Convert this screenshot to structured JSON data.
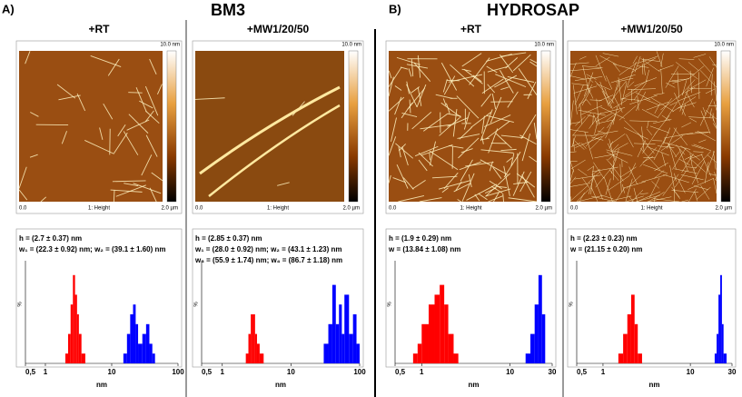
{
  "headers": {
    "a": "A)",
    "bm3": "BM3",
    "b": "B)",
    "hydrosap": "HYDROSAP"
  },
  "columns": [
    "+RT",
    "+MW1/20/50",
    "+RT",
    "+MW1/20/50"
  ],
  "afm": {
    "scale_max": "10.0 nm",
    "origin": "0.0",
    "channel": "1: Height",
    "size": "2.0 µm"
  },
  "chart_data": [
    {
      "type": "histogram",
      "annotations": [
        "h = (2.7 ± 0.37) nm",
        "w₁ = (22.3 ± 0.92) nm; w₂ = (39.1 ± 1.60) nm"
      ],
      "xlabel": "nm",
      "ylabel": "%",
      "xscale": "log",
      "xlim": [
        0.5,
        100
      ],
      "xticks": [
        {
          "value": 0.5,
          "label": "0,5"
        },
        1,
        10,
        100
      ],
      "ylim": [
        0,
        10
      ],
      "series": [
        {
          "color": "#ff0000",
          "bins": [
            2.0,
            2.2,
            2.4,
            2.6,
            2.8,
            3.0,
            3.2,
            3.5,
            4.0
          ],
          "values": [
            1,
            3,
            6,
            9,
            7,
            5,
            3,
            1
          ]
        },
        {
          "color": "#0000ff",
          "bins": [
            15,
            17,
            19,
            21,
            23,
            25,
            29,
            33,
            37,
            41,
            45
          ],
          "values": [
            1,
            3,
            5,
            6,
            4,
            2,
            3,
            4,
            2,
            1
          ]
        }
      ]
    },
    {
      "type": "histogram",
      "annotations": [
        "h = (2.85 ± 0.37) nm",
        "w₁ = (28.0 ± 0.92) nm; w₂ = (43.1 ± 1.23) nm",
        "w₃ = (55.9 ± 1.74) nm; w₄ = (86.7 ± 1.18) nm"
      ],
      "xlabel": "nm",
      "ylabel": "%",
      "xscale": "log",
      "xlim": [
        0.5,
        100
      ],
      "xticks": [
        {
          "value": 0.5,
          "label": "0,5"
        },
        1,
        10,
        100
      ],
      "ylim": [
        0,
        10
      ],
      "series": [
        {
          "color": "#ff0000",
          "bins": [
            2.2,
            2.4,
            2.6,
            2.8,
            3.0,
            3.2,
            3.5,
            4.0
          ],
          "values": [
            1,
            3,
            5,
            5,
            3,
            2,
            1
          ]
        },
        {
          "color": "#0000ff",
          "bins": [
            30,
            35,
            40,
            45,
            50,
            55,
            60,
            70,
            80,
            90,
            100
          ],
          "values": [
            2,
            4,
            8,
            4,
            6,
            3,
            7,
            3,
            5,
            2
          ]
        }
      ]
    },
    {
      "type": "histogram",
      "annotations": [
        "h = (1.9 ± 0.29) nm",
        "w = (13.84 ± 1.08) nm"
      ],
      "xlabel": "nm",
      "ylabel": "%",
      "xscale": "log",
      "xlim": [
        0.5,
        30
      ],
      "xticks": [
        {
          "value": 0.5,
          "label": "0,5"
        },
        1,
        10,
        30
      ],
      "ylim": [
        0,
        10
      ],
      "series": [
        {
          "color": "#ff0000",
          "bins": [
            0.8,
            0.9,
            1.0,
            1.2,
            1.4,
            1.6,
            1.8,
            2.0,
            2.3,
            2.6
          ],
          "values": [
            1,
            2,
            4,
            6,
            7,
            8,
            6,
            3,
            1
          ]
        },
        {
          "color": "#0000ff",
          "bins": [
            15,
            17,
            19,
            21,
            23,
            25
          ],
          "values": [
            1,
            3,
            6,
            9,
            5
          ]
        }
      ]
    },
    {
      "type": "histogram",
      "annotations": [
        "h = (2.23 ± 0.23) nm",
        "w = (21.15 ± 0.20) nm"
      ],
      "xlabel": "nm",
      "ylabel": "%",
      "xscale": "log",
      "xlim": [
        0.5,
        30
      ],
      "xticks": [
        {
          "value": 0.5,
          "label": "0,5"
        },
        1,
        10,
        30
      ],
      "ylim": [
        0,
        10
      ],
      "series": [
        {
          "color": "#ff0000",
          "bins": [
            1.5,
            1.7,
            1.9,
            2.1,
            2.3,
            2.5,
            2.8
          ],
          "values": [
            1,
            3,
            5,
            7,
            4,
            1
          ]
        },
        {
          "color": "#0000ff",
          "bins": [
            19,
            20,
            21,
            22,
            23,
            24,
            26
          ],
          "values": [
            1,
            3,
            7,
            9,
            4,
            1
          ]
        }
      ]
    }
  ]
}
